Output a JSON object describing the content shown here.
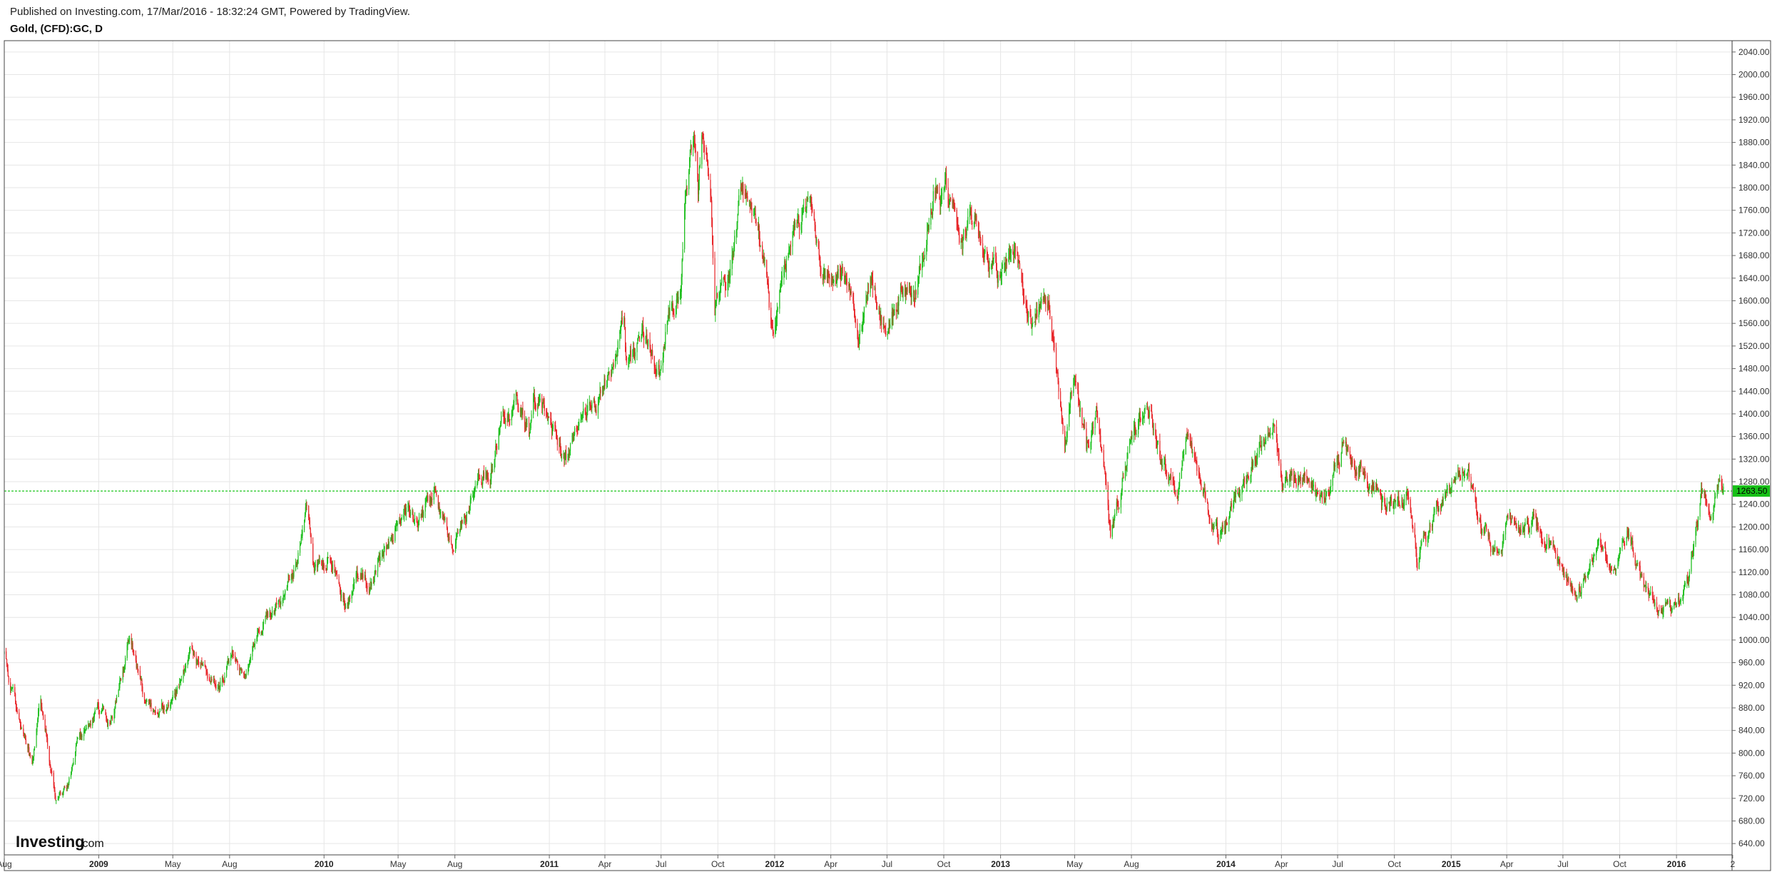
{
  "header": {
    "published": "Published on Investing.com, 17/Mar/2016 - 18:32:24 GMT, Powered by TradingView.",
    "symbol": "Gold, (CFD):GC, D"
  },
  "logo": {
    "main": "Investing",
    "sub": ".com"
  },
  "colors": {
    "up": "#1fbf1f",
    "down": "#e8262a",
    "wick": "#333333",
    "grid": "#e6e6e6",
    "last_line": "#1ec71e",
    "last_tag": "#17c017"
  },
  "chart_data": {
    "type": "candlestick",
    "title": "Gold, (CFD):GC, D",
    "ylim": [
      620,
      2060
    ],
    "y_ticks": [
      640,
      680,
      720,
      760,
      800,
      840,
      880,
      920,
      960,
      1000,
      1040,
      1080,
      1120,
      1160,
      1200,
      1240,
      1280,
      1320,
      1360,
      1400,
      1440,
      1480,
      1520,
      1560,
      1600,
      1640,
      1680,
      1720,
      1760,
      1800,
      1840,
      1880,
      1920,
      1960,
      2000,
      2040
    ],
    "xlim": [
      "2008-08-01",
      "2016-03-31"
    ],
    "x_ticks": [
      {
        "date": "2008-08-01",
        "label": "Aug",
        "major": false
      },
      {
        "date": "2009-01-01",
        "label": "2009",
        "major": true
      },
      {
        "date": "2009-05-01",
        "label": "May",
        "major": false
      },
      {
        "date": "2009-08-01",
        "label": "Aug",
        "major": false
      },
      {
        "date": "2010-01-01",
        "label": "2010",
        "major": true
      },
      {
        "date": "2010-05-01",
        "label": "May",
        "major": false
      },
      {
        "date": "2010-08-01",
        "label": "Aug",
        "major": false
      },
      {
        "date": "2011-01-01",
        "label": "2011",
        "major": true
      },
      {
        "date": "2011-04-01",
        "label": "Apr",
        "major": false
      },
      {
        "date": "2011-07-01",
        "label": "Jul",
        "major": false
      },
      {
        "date": "2011-10-01",
        "label": "Oct",
        "major": false
      },
      {
        "date": "2012-01-01",
        "label": "2012",
        "major": true
      },
      {
        "date": "2012-04-01",
        "label": "Apr",
        "major": false
      },
      {
        "date": "2012-07-01",
        "label": "Jul",
        "major": false
      },
      {
        "date": "2012-10-01",
        "label": "Oct",
        "major": false
      },
      {
        "date": "2013-01-01",
        "label": "2013",
        "major": true
      },
      {
        "date": "2013-05-01",
        "label": "May",
        "major": false
      },
      {
        "date": "2013-08-01",
        "label": "Aug",
        "major": false
      },
      {
        "date": "2014-01-01",
        "label": "2014",
        "major": true
      },
      {
        "date": "2014-04-01",
        "label": "Apr",
        "major": false
      },
      {
        "date": "2014-07-01",
        "label": "Jul",
        "major": false
      },
      {
        "date": "2014-10-01",
        "label": "Oct",
        "major": false
      },
      {
        "date": "2015-01-01",
        "label": "2015",
        "major": true
      },
      {
        "date": "2015-04-01",
        "label": "Apr",
        "major": false
      },
      {
        "date": "2015-07-01",
        "label": "Jul",
        "major": false
      },
      {
        "date": "2015-10-01",
        "label": "Oct",
        "major": false
      },
      {
        "date": "2016-01-01",
        "label": "2016",
        "major": true
      },
      {
        "date": "2016-04-01",
        "label": "2",
        "major": false
      }
    ],
    "last_price": 1263.5,
    "last_price_label": "1263.50",
    "anchors": [
      [
        "2008-08-01",
        975
      ],
      [
        "2008-08-20",
        880
      ],
      [
        "2008-09-15",
        780
      ],
      [
        "2008-09-28",
        905
      ],
      [
        "2008-10-24",
        715
      ],
      [
        "2008-11-12",
        740
      ],
      [
        "2008-11-28",
        818
      ],
      [
        "2008-12-30",
        880
      ],
      [
        "2009-01-20",
        850
      ],
      [
        "2009-02-20",
        1003
      ],
      [
        "2009-03-18",
        890
      ],
      [
        "2009-04-06",
        870
      ],
      [
        "2009-05-05",
        905
      ],
      [
        "2009-06-02",
        985
      ],
      [
        "2009-06-25",
        930
      ],
      [
        "2009-07-15",
        912
      ],
      [
        "2009-08-05",
        965
      ],
      [
        "2009-08-25",
        940
      ],
      [
        "2009-09-17",
        1010
      ],
      [
        "2009-10-14",
        1065
      ],
      [
        "2009-11-12",
        1120
      ],
      [
        "2009-12-03",
        1225
      ],
      [
        "2009-12-16",
        1120
      ],
      [
        "2010-01-12",
        1155
      ],
      [
        "2010-02-05",
        1055
      ],
      [
        "2010-02-22",
        1115
      ],
      [
        "2010-03-15",
        1100
      ],
      [
        "2010-04-01",
        1135
      ],
      [
        "2010-05-12",
        1240
      ],
      [
        "2010-06-01",
        1200
      ],
      [
        "2010-06-28",
        1262
      ],
      [
        "2010-07-28",
        1158
      ],
      [
        "2010-08-20",
        1230
      ],
      [
        "2010-09-30",
        1310
      ],
      [
        "2010-10-15",
        1385
      ],
      [
        "2010-11-09",
        1420
      ],
      [
        "2010-11-30",
        1365
      ],
      [
        "2010-12-07",
        1430
      ],
      [
        "2011-01-10",
        1370
      ],
      [
        "2011-01-28",
        1320
      ],
      [
        "2011-02-28",
        1410
      ],
      [
        "2011-03-25",
        1430
      ],
      [
        "2011-04-15",
        1490
      ],
      [
        "2011-05-02",
        1575
      ],
      [
        "2011-05-06",
        1480
      ],
      [
        "2011-06-01",
        1540
      ],
      [
        "2011-06-28",
        1480
      ],
      [
        "2011-07-12",
        1570
      ],
      [
        "2011-08-01",
        1620
      ],
      [
        "2011-08-10",
        1790
      ],
      [
        "2011-08-23",
        1915
      ],
      [
        "2011-08-30",
        1790
      ],
      [
        "2011-09-05",
        1900
      ],
      [
        "2011-09-20",
        1800
      ],
      [
        "2011-09-26",
        1600
      ],
      [
        "2011-10-20",
        1640
      ],
      [
        "2011-11-08",
        1800
      ],
      [
        "2011-11-30",
        1750
      ],
      [
        "2011-12-12",
        1690
      ],
      [
        "2011-12-29",
        1530
      ],
      [
        "2012-01-16",
        1660
      ],
      [
        "2012-02-28",
        1790
      ],
      [
        "2012-03-15",
        1640
      ],
      [
        "2012-04-20",
        1650
      ],
      [
        "2012-05-16",
        1530
      ],
      [
        "2012-06-06",
        1640
      ],
      [
        "2012-06-28",
        1550
      ],
      [
        "2012-07-24",
        1620
      ],
      [
        "2012-08-15",
        1600
      ],
      [
        "2012-09-14",
        1775
      ],
      [
        "2012-10-04",
        1795
      ],
      [
        "2012-10-26",
        1705
      ],
      [
        "2012-11-22",
        1740
      ],
      [
        "2012-12-28",
        1640
      ],
      [
        "2013-01-22",
        1690
      ],
      [
        "2013-02-20",
        1560
      ],
      [
        "2013-03-20",
        1610
      ],
      [
        "2013-04-15",
        1330
      ],
      [
        "2013-05-01",
        1480
      ],
      [
        "2013-05-20",
        1340
      ],
      [
        "2013-06-05",
        1410
      ],
      [
        "2013-06-28",
        1180
      ],
      [
        "2013-07-20",
        1300
      ],
      [
        "2013-08-28",
        1430
      ],
      [
        "2013-09-20",
        1310
      ],
      [
        "2013-10-15",
        1260
      ],
      [
        "2013-10-28",
        1360
      ],
      [
        "2013-12-19",
        1190
      ],
      [
        "2014-01-25",
        1270
      ],
      [
        "2014-03-17",
        1392
      ],
      [
        "2014-04-01",
        1280
      ],
      [
        "2014-05-10",
        1300
      ],
      [
        "2014-06-02",
        1240
      ],
      [
        "2014-07-10",
        1345
      ],
      [
        "2014-08-15",
        1300
      ],
      [
        "2014-09-10",
        1240
      ],
      [
        "2014-10-20",
        1250
      ],
      [
        "2014-11-07",
        1130
      ],
      [
        "2014-12-10",
        1230
      ],
      [
        "2015-01-22",
        1307
      ],
      [
        "2015-02-20",
        1200
      ],
      [
        "2015-03-17",
        1145
      ],
      [
        "2015-04-06",
        1220
      ],
      [
        "2015-05-20",
        1200
      ],
      [
        "2015-06-10",
        1175
      ],
      [
        "2015-07-24",
        1075
      ],
      [
        "2015-08-25",
        1170
      ],
      [
        "2015-09-20",
        1130
      ],
      [
        "2015-10-14",
        1190
      ],
      [
        "2015-11-12",
        1080
      ],
      [
        "2015-12-03",
        1050
      ],
      [
        "2015-12-31",
        1060
      ],
      [
        "2016-01-20",
        1100
      ],
      [
        "2016-02-11",
        1260
      ],
      [
        "2016-02-25",
        1225
      ],
      [
        "2016-03-10",
        1280
      ],
      [
        "2016-03-17",
        1263.5
      ]
    ]
  }
}
